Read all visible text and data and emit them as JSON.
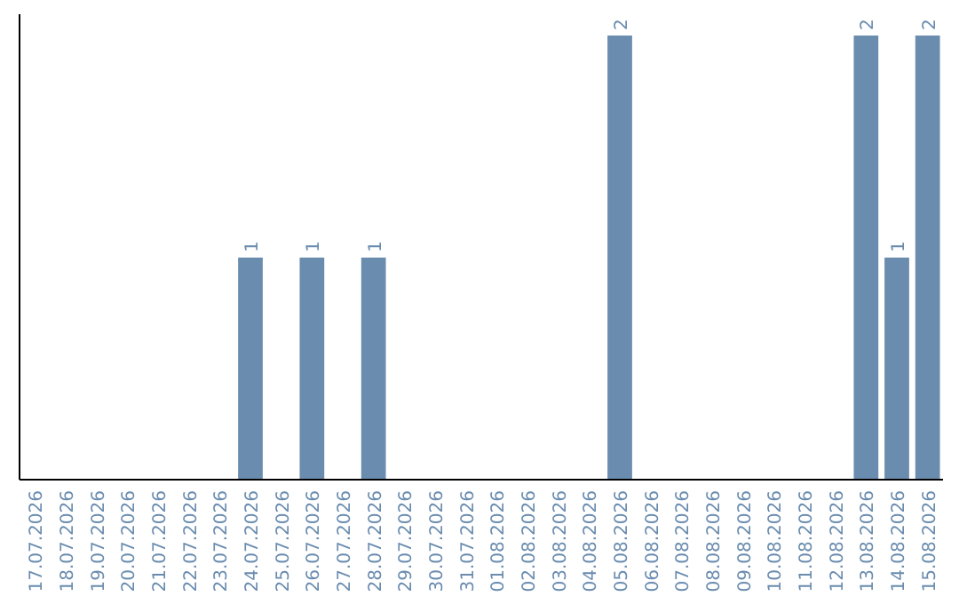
{
  "chart_data": {
    "type": "bar",
    "categories": [
      "17.07.2026",
      "18.07.2026",
      "19.07.2026",
      "20.07.2026",
      "21.07.2026",
      "22.07.2026",
      "23.07.2026",
      "24.07.2026",
      "25.07.2026",
      "26.07.2026",
      "27.07.2026",
      "28.07.2026",
      "29.07.2026",
      "30.07.2026",
      "31.07.2026",
      "01.08.2026",
      "02.08.2026",
      "03.08.2026",
      "04.08.2026",
      "05.08.2026",
      "06.08.2026",
      "07.08.2026",
      "08.08.2026",
      "09.08.2026",
      "10.08.2026",
      "11.08.2026",
      "12.08.2026",
      "13.08.2026",
      "14.08.2026",
      "15.08.2026"
    ],
    "values": [
      null,
      null,
      null,
      null,
      null,
      null,
      null,
      1,
      null,
      1,
      null,
      1,
      null,
      null,
      null,
      null,
      null,
      null,
      null,
      2,
      null,
      null,
      null,
      null,
      null,
      null,
      null,
      2,
      1,
      2
    ],
    "color": "#6a8caf",
    "ylim": [
      0,
      2
    ],
    "tick_labels": "x",
    "data_labels": true
  }
}
